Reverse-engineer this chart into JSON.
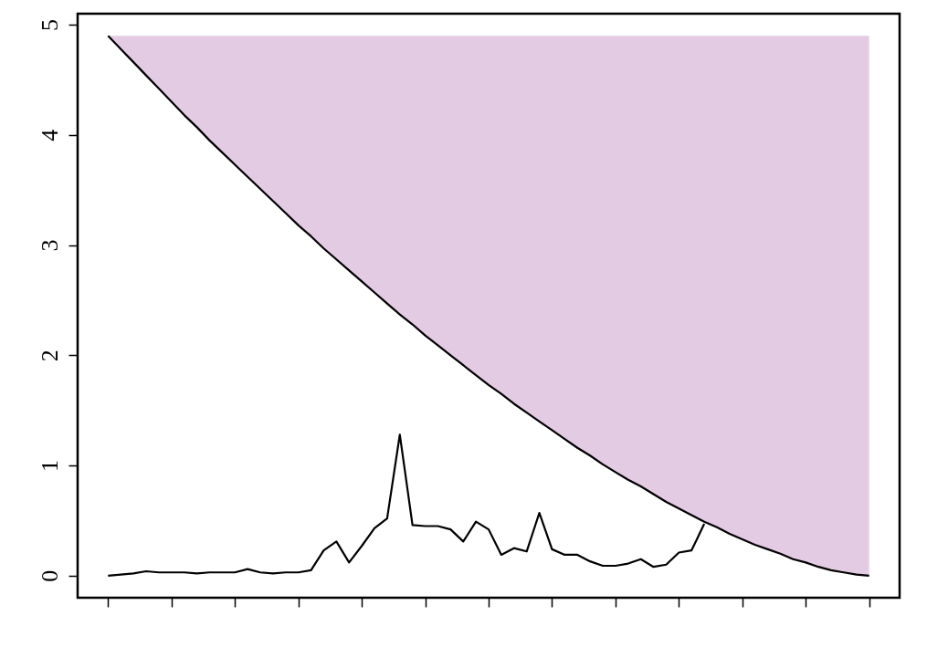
{
  "chart_data": {
    "type": "line",
    "categories": [
      null,
      null,
      null,
      null,
      null,
      null,
      null,
      null,
      null,
      null,
      null,
      null,
      null,
      null,
      null,
      null,
      null,
      null,
      null,
      null,
      null,
      null,
      null,
      null,
      null,
      null,
      null,
      null,
      null,
      null,
      null,
      null,
      null,
      null,
      null,
      null,
      null,
      null,
      null,
      null,
      null,
      null,
      null,
      null,
      null,
      null,
      null,
      null,
      null,
      null,
      null,
      null,
      null,
      null,
      null,
      null,
      null,
      null,
      null,
      null,
      null
    ],
    "series": [
      {
        "color": "#000000",
        "values": [
          4.9,
          4.78,
          4.66,
          4.54,
          4.42,
          4.3,
          4.18,
          4.07,
          3.95,
          3.84,
          3.73,
          3.62,
          3.51,
          3.4,
          3.29,
          3.18,
          3.08,
          2.97,
          2.87,
          2.77,
          2.67,
          2.57,
          2.47,
          2.37,
          2.28,
          2.18,
          2.09,
          2.0,
          1.91,
          1.82,
          1.73,
          1.65,
          1.56,
          1.48,
          1.4,
          1.32,
          1.24,
          1.16,
          1.09,
          1.01,
          0.94,
          0.87,
          0.81,
          0.74,
          0.67,
          0.61,
          0.55,
          0.49,
          0.44,
          0.38,
          0.33,
          0.28,
          0.24,
          0.2,
          0.15,
          0.12,
          0.08,
          0.05,
          0.03,
          0.01,
          0
        ],
        "lower": [
          4.9,
          4.78,
          4.66,
          4.54,
          4.42,
          4.3,
          4.18,
          4.07,
          3.95,
          3.84,
          3.73,
          3.62,
          3.51,
          3.4,
          3.29,
          3.18,
          3.08,
          2.97,
          2.87,
          2.77,
          2.67,
          2.57,
          2.47,
          2.37,
          2.28,
          2.18,
          2.09,
          2.0,
          1.91,
          1.82,
          1.73,
          1.65,
          1.56,
          1.48,
          1.4,
          1.32,
          1.24,
          1.16,
          1.09,
          1.01,
          0.94,
          0.87,
          0.81,
          0.74,
          0.67,
          0.61,
          0.55,
          0.49,
          0.44,
          0.38,
          0.33,
          0.28,
          0.24,
          0.2,
          0.15,
          0.12,
          0.08,
          0.05,
          0.03,
          0.01,
          0
        ],
        "upper": [
          4.9,
          4.9,
          4.9,
          4.9,
          4.9,
          4.9,
          4.9,
          4.9,
          4.9,
          4.9,
          4.9,
          4.9,
          4.9,
          4.9,
          4.9,
          4.9,
          4.9,
          4.9,
          4.9,
          4.9,
          4.9,
          4.9,
          4.9,
          4.9,
          4.9,
          4.9,
          4.9,
          4.9,
          4.9,
          4.9,
          4.9,
          4.9,
          4.9,
          4.9,
          4.9,
          4.9,
          4.9,
          4.9,
          4.9,
          4.9,
          4.9,
          4.9,
          4.9,
          4.9,
          4.9,
          4.9,
          4.9,
          4.9,
          4.9,
          4.9,
          4.9,
          4.9,
          4.9,
          4.9,
          4.9,
          4.9,
          4.9,
          4.9,
          4.9,
          4.9,
          4.9
        ]
      },
      {
        "color": "#000000",
        "values": [
          0,
          0.01,
          0.02,
          0.04,
          0.03,
          0.03,
          0.03,
          0.02,
          0.03,
          0.03,
          0.03,
          0.06,
          0.03,
          0.02,
          0.03,
          0.03,
          0.05,
          0.23,
          0.31,
          0.12,
          0.27,
          0.43,
          0.52,
          1.28,
          0.46,
          0.45,
          0.45,
          0.42,
          0.31,
          0.49,
          0.42,
          0.19,
          0.25,
          0.22,
          0.57,
          0.24,
          0.19,
          0.19,
          0.13,
          0.09,
          0.09,
          0.11,
          0.15,
          0.08,
          0.1,
          0.21,
          0.23,
          0.47,
          null,
          null,
          null,
          null,
          null,
          null,
          null,
          null,
          null,
          null,
          null,
          null,
          null
        ]
      }
    ],
    "ylim": [
      -0.2,
      5.1
    ],
    "yticks": [
      0,
      1,
      2,
      3,
      4,
      5
    ],
    "grid": false,
    "tick_labels": "y",
    "line_style": "solid"
  }
}
